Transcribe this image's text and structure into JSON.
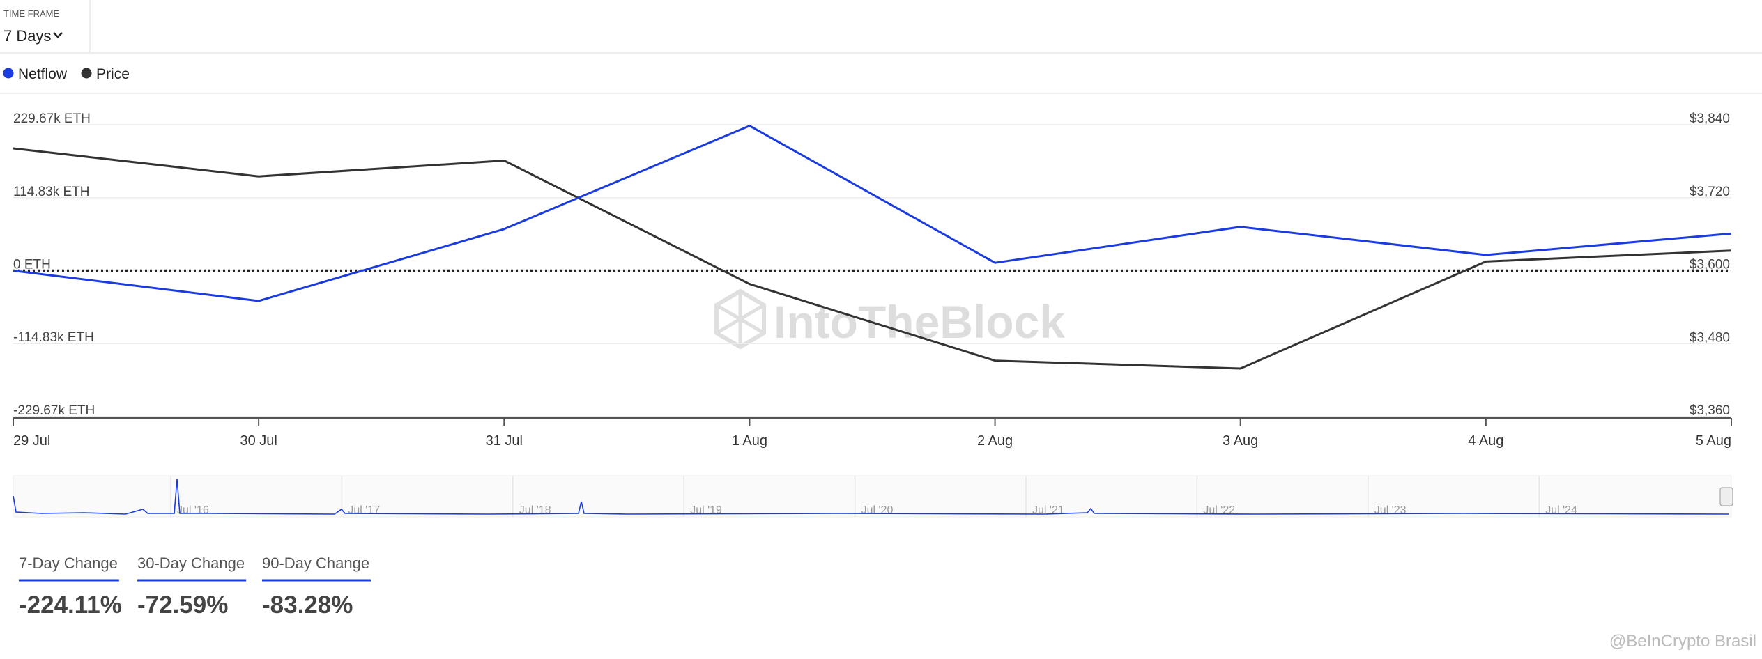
{
  "time_frame": {
    "label": "TIME FRAME",
    "value": "7 Days"
  },
  "chart_data": {
    "type": "line",
    "categories": [
      "29 Jul",
      "30 Jul",
      "31 Jul",
      "1 Aug",
      "2 Aug",
      "3 Aug",
      "4 Aug",
      "5 Aug"
    ],
    "series": [
      {
        "name": "Netflow",
        "color": "#1a3be0",
        "values": [
          0,
          -47700,
          65400,
          227900,
          12400,
          68900,
          24700,
          58300
        ]
      },
      {
        "name": "Price",
        "color": "#333333",
        "axis": "y2",
        "values": [
          3801,
          3755,
          3781,
          3578,
          3452,
          3439,
          3615,
          3633
        ]
      }
    ],
    "ylim": [
      -229670,
      229670
    ],
    "yticks": [
      {
        "value": 229670,
        "label": "229.67k ETH"
      },
      {
        "value": 114830,
        "label": "114.83k ETH"
      },
      {
        "value": 0,
        "label": "0 ETH"
      },
      {
        "value": -114830,
        "label": "-114.83k ETH"
      },
      {
        "value": -229670,
        "label": "-229.67k ETH"
      }
    ],
    "y2lim": [
      3360,
      3840
    ],
    "y2ticks": [
      {
        "value": 3840,
        "label": "$3,840"
      },
      {
        "value": 3720,
        "label": "$3,720"
      },
      {
        "value": 3600,
        "label": "$3,600"
      },
      {
        "value": 3480,
        "label": "$3,480"
      },
      {
        "value": 3360,
        "label": "$3,360"
      }
    ],
    "grid": true
  },
  "navigator": {
    "labels": [
      "Jul '16",
      "Jul '17",
      "Jul '18",
      "Jul '19",
      "Jul '20",
      "Jul '21",
      "Jul '22",
      "Jul '23",
      "Jul '24"
    ]
  },
  "changes": [
    {
      "label": "7-Day Change",
      "value": "-224.11%"
    },
    {
      "label": "30-Day Change",
      "value": "-72.59%"
    },
    {
      "label": "90-Day Change",
      "value": "-83.28%"
    }
  ],
  "watermarks": [
    "IntoTheBlock",
    "@BeInCrypto Brasil"
  ]
}
